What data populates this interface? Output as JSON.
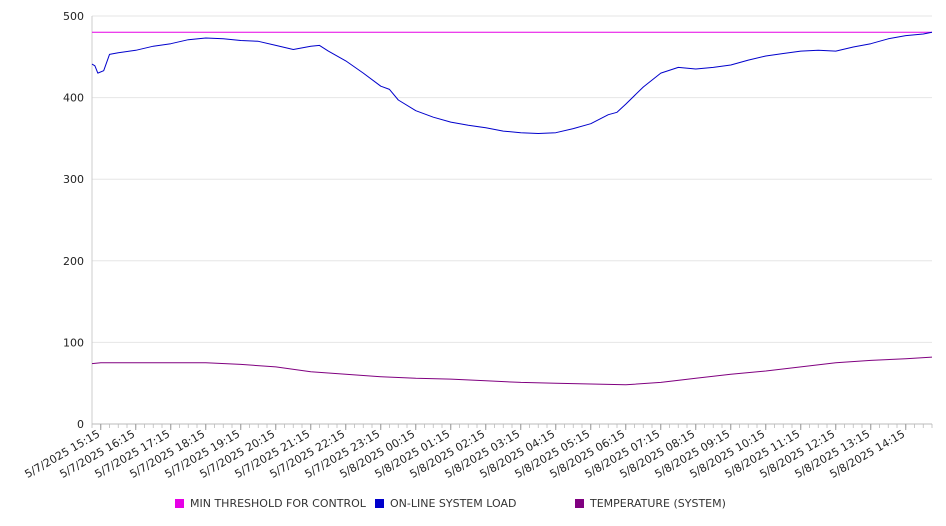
{
  "chart_data": {
    "type": "line",
    "title": "",
    "xlabel": "",
    "ylabel": "",
    "ylim": [
      0,
      500
    ],
    "yticks": [
      0,
      100,
      200,
      300,
      400,
      500
    ],
    "grid": true,
    "legend_position": "bottom",
    "x_tick_labels": [
      "5/7/2025 15:15",
      "5/7/2025 16:15",
      "5/7/2025 17:15",
      "5/7/2025 18:15",
      "5/7/2025 19:15",
      "5/7/2025 20:15",
      "5/7/2025 21:15",
      "5/7/2025 22:15",
      "5/7/2025 23:15",
      "5/8/2025 00:15",
      "5/8/2025 01:15",
      "5/8/2025 02:15",
      "5/8/2025 03:15",
      "5/8/2025 04:15",
      "5/8/2025 05:15",
      "5/8/2025 06:15",
      "5/8/2025 07:15",
      "5/8/2025 08:15",
      "5/8/2025 09:15",
      "5/8/2025 10:15",
      "5/8/2025 11:15",
      "5/8/2025 12:15",
      "5/8/2025 13:15",
      "5/8/2025 14:15"
    ],
    "x_start": "5/7/2025 15:00",
    "x_end": "5/8/2025 15:00",
    "series": [
      {
        "name": "MIN THRESHOLD FOR CONTROL",
        "color": "#e600e6",
        "points": [
          [
            "5/7/2025 15:00",
            480
          ],
          [
            "5/8/2025 15:00",
            480
          ]
        ]
      },
      {
        "name": "ON-LINE SYSTEM LOAD",
        "color": "#0000cc",
        "points": [
          [
            "5/7/2025 15:00",
            441
          ],
          [
            "5/7/2025 15:05",
            439
          ],
          [
            "5/7/2025 15:10",
            430
          ],
          [
            "5/7/2025 15:20",
            433
          ],
          [
            "5/7/2025 15:30",
            453
          ],
          [
            "5/7/2025 15:45",
            455
          ],
          [
            "5/7/2025 16:15",
            458
          ],
          [
            "5/7/2025 16:45",
            463
          ],
          [
            "5/7/2025 17:15",
            466
          ],
          [
            "5/7/2025 17:45",
            471
          ],
          [
            "5/7/2025 18:15",
            473
          ],
          [
            "5/7/2025 18:45",
            472
          ],
          [
            "5/7/2025 19:15",
            470
          ],
          [
            "5/7/2025 19:45",
            469
          ],
          [
            "5/7/2025 20:15",
            464
          ],
          [
            "5/7/2025 20:45",
            459
          ],
          [
            "5/7/2025 21:15",
            463
          ],
          [
            "5/7/2025 21:30",
            464
          ],
          [
            "5/7/2025 21:45",
            457
          ],
          [
            "5/7/2025 22:15",
            445
          ],
          [
            "5/7/2025 22:45",
            430
          ],
          [
            "5/7/2025 23:15",
            414
          ],
          [
            "5/7/2025 23:30",
            410
          ],
          [
            "5/7/2025 23:45",
            397
          ],
          [
            "5/8/2025 00:15",
            384
          ],
          [
            "5/8/2025 00:45",
            376
          ],
          [
            "5/8/2025 01:15",
            370
          ],
          [
            "5/8/2025 01:45",
            366
          ],
          [
            "5/8/2025 02:15",
            363
          ],
          [
            "5/8/2025 02:45",
            359
          ],
          [
            "5/8/2025 03:15",
            357
          ],
          [
            "5/8/2025 03:45",
            356
          ],
          [
            "5/8/2025 04:15",
            357
          ],
          [
            "5/8/2025 04:45",
            362
          ],
          [
            "5/8/2025 05:15",
            368
          ],
          [
            "5/8/2025 05:45",
            379
          ],
          [
            "5/8/2025 06:00",
            382
          ],
          [
            "5/8/2025 06:15",
            392
          ],
          [
            "5/8/2025 06:45",
            413
          ],
          [
            "5/8/2025 07:15",
            430
          ],
          [
            "5/8/2025 07:45",
            437
          ],
          [
            "5/8/2025 08:15",
            435
          ],
          [
            "5/8/2025 08:45",
            437
          ],
          [
            "5/8/2025 09:15",
            440
          ],
          [
            "5/8/2025 09:45",
            446
          ],
          [
            "5/8/2025 10:15",
            451
          ],
          [
            "5/8/2025 10:45",
            454
          ],
          [
            "5/8/2025 11:15",
            457
          ],
          [
            "5/8/2025 11:45",
            458
          ],
          [
            "5/8/2025 12:15",
            457
          ],
          [
            "5/8/2025 12:45",
            462
          ],
          [
            "5/8/2025 13:15",
            466
          ],
          [
            "5/8/2025 13:45",
            472
          ],
          [
            "5/8/2025 14:15",
            476
          ],
          [
            "5/8/2025 14:45",
            478
          ],
          [
            "5/8/2025 15:00",
            480
          ]
        ]
      },
      {
        "name": "TEMPERATURE (SYSTEM)",
        "color": "#800080",
        "points": [
          [
            "5/7/2025 15:00",
            74
          ],
          [
            "5/7/2025 15:15",
            75
          ],
          [
            "5/7/2025 18:15",
            75
          ],
          [
            "5/7/2025 19:15",
            73
          ],
          [
            "5/7/2025 20:15",
            70
          ],
          [
            "5/7/2025 21:15",
            64
          ],
          [
            "5/7/2025 22:15",
            61
          ],
          [
            "5/7/2025 23:15",
            58
          ],
          [
            "5/8/2025 00:15",
            56
          ],
          [
            "5/8/2025 01:15",
            55
          ],
          [
            "5/8/2025 02:15",
            53
          ],
          [
            "5/8/2025 03:15",
            51
          ],
          [
            "5/8/2025 04:15",
            50
          ],
          [
            "5/8/2025 05:15",
            49
          ],
          [
            "5/8/2025 06:15",
            48
          ],
          [
            "5/8/2025 07:15",
            51
          ],
          [
            "5/8/2025 08:15",
            56
          ],
          [
            "5/8/2025 09:15",
            61
          ],
          [
            "5/8/2025 10:15",
            65
          ],
          [
            "5/8/2025 11:15",
            70
          ],
          [
            "5/8/2025 12:15",
            75
          ],
          [
            "5/8/2025 13:15",
            78
          ],
          [
            "5/8/2025 14:15",
            80
          ],
          [
            "5/8/2025 15:00",
            82
          ]
        ]
      }
    ]
  },
  "legend": {
    "items": [
      {
        "label": "MIN THRESHOLD FOR CONTROL",
        "color": "#e600e6"
      },
      {
        "label": "ON-LINE SYSTEM LOAD",
        "color": "#0000cc"
      },
      {
        "label": "TEMPERATURE (SYSTEM)",
        "color": "#800080"
      }
    ]
  }
}
